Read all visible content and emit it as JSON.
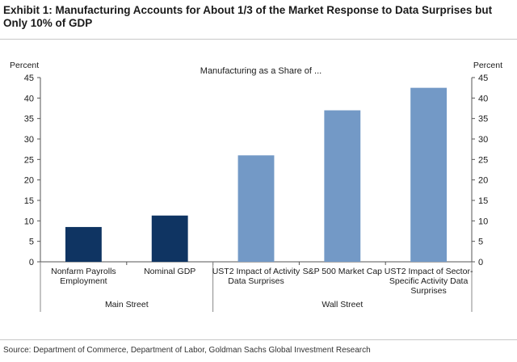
{
  "title": "Exhibit 1: Manufacturing Accounts for About 1/3 of the Market Response to Data Surprises but Only 10% of GDP",
  "source": "Source: Department of Commerce, Department of Labor, Goldman Sachs Global Investment Research",
  "colors": {
    "dark": "#0f3462",
    "light": "#7399c6"
  },
  "chart_data": {
    "type": "bar",
    "subtitle": "Manufacturing as a Share of ...",
    "ylabel_left": "Percent",
    "ylabel_right": "Percent",
    "ylim": [
      0,
      45
    ],
    "yticks": [
      0,
      5,
      10,
      15,
      20,
      25,
      30,
      35,
      40,
      45
    ],
    "grid": false,
    "categories": [
      [
        "Nonfarm Payrolls",
        "Employment"
      ],
      [
        "Nominal GDP"
      ],
      [
        "UST2 Impact of Activity",
        "Data Surprises"
      ],
      [
        "S&P 500 Market Cap"
      ],
      [
        "UST2 Impact of Sector-",
        "Specific Activity Data",
        "Surprises"
      ]
    ],
    "values": [
      8.5,
      11.3,
      26,
      37,
      42.5
    ],
    "bar_colors": [
      "#0f3462",
      "#0f3462",
      "#7399c6",
      "#7399c6",
      "#7399c6"
    ],
    "groups": [
      {
        "label": "Main Street",
        "span": [
          0,
          1
        ]
      },
      {
        "label": "Wall Street",
        "span": [
          2,
          4
        ]
      }
    ]
  }
}
